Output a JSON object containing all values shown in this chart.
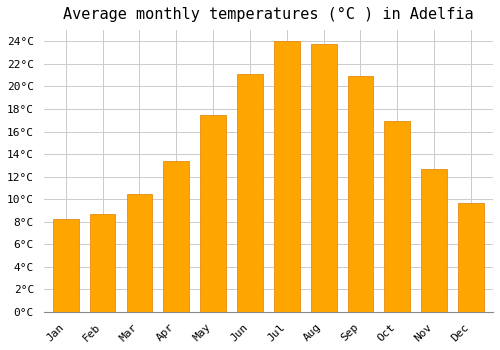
{
  "title": "Average monthly temperatures (°C ) in Adelfia",
  "months": [
    "Jan",
    "Feb",
    "Mar",
    "Apr",
    "May",
    "Jun",
    "Jul",
    "Aug",
    "Sep",
    "Oct",
    "Nov",
    "Dec"
  ],
  "temperatures": [
    8.2,
    8.7,
    10.5,
    13.4,
    17.5,
    21.1,
    24.0,
    23.8,
    20.9,
    16.9,
    12.7,
    9.7
  ],
  "bar_color": "#FFA500",
  "bar_edge_color": "#E08000",
  "background_color": "#FFFFFF",
  "grid_color": "#CCCCCC",
  "ylim": [
    0,
    25
  ],
  "yticks": [
    0,
    2,
    4,
    6,
    8,
    10,
    12,
    14,
    16,
    18,
    20,
    22,
    24
  ],
  "title_fontsize": 11,
  "tick_fontsize": 8,
  "font_family": "monospace"
}
